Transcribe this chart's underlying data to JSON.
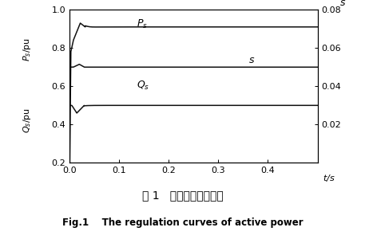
{
  "title_chinese": "图 1   有功调节仿真曲线",
  "title_english": "Fig.1    The regulation curves of active power",
  "xlabel": "t/s",
  "ylabel_left1": "$P_s$/pu",
  "ylabel_left2": "$Q_s$/pu",
  "ylabel_right": "$s$",
  "xlim": [
    0.0,
    0.5
  ],
  "ylim_left": [
    0.2,
    1.0
  ],
  "ylim_right": [
    0.0,
    0.08
  ],
  "xticks": [
    0.0,
    0.1,
    0.2,
    0.3,
    0.4
  ],
  "xtick_labels": [
    "0.0",
    "0.1",
    "0.2",
    "0.3",
    "0.4"
  ],
  "yticks_left": [
    0.2,
    0.4,
    0.6,
    0.8,
    1.0
  ],
  "ytick_labels_left": [
    "0.2",
    "0.4",
    "0.6",
    "0.8",
    "1.0"
  ],
  "yticks_right": [
    0.0,
    0.02,
    0.04,
    0.06,
    0.08
  ],
  "ytick_labels_right": [
    "",
    "0.02",
    "0.04",
    "0.06",
    "0.08"
  ],
  "Ps_label": "$P_s$",
  "Qs_label": "$Q_s$",
  "s_label": "$s$",
  "background_color": "#ffffff",
  "line_color": "#111111"
}
